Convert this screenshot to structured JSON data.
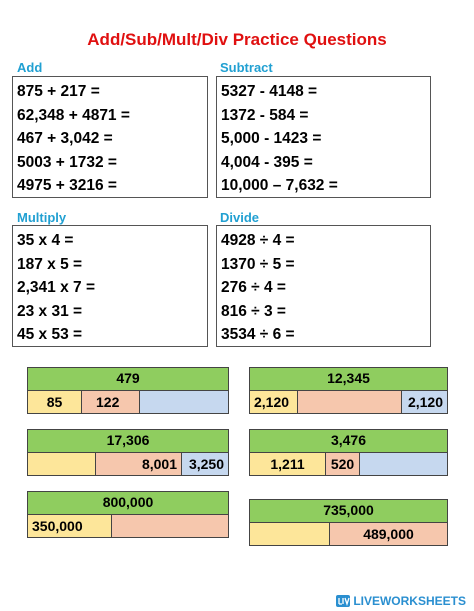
{
  "title": "Add/Sub/Mult/Div Practice Questions",
  "sections": {
    "add": {
      "label": "Add",
      "questions": [
        "875 + 217 =",
        "62,348 + 4871 =",
        "467 + 3,042 =",
        "5003 + 1732 =",
        "4975 + 3216 ="
      ]
    },
    "subtract": {
      "label": "Subtract",
      "questions": [
        "5327 - 4148 =",
        "1372 - 584 =",
        "5,000 - 1423 =",
        "4,004 - 395 =",
        "10,000 – 7,632 ="
      ]
    },
    "multiply": {
      "label": "Multiply",
      "questions": [
        "35 x 4 =",
        "187 x 5 =",
        "2,341 x 7 =",
        "23 x 31 =",
        "45 x 53 ="
      ]
    },
    "divide": {
      "label": "Divide",
      "questions": [
        "4928 ÷ 4 =",
        "1370 ÷ 5 =",
        "276 ÷ 4 =",
        "816 ÷ 3 =",
        "3534 ÷ 6 ="
      ]
    }
  },
  "bar_models": [
    {
      "total": "479",
      "parts": [
        "85",
        "122",
        ""
      ]
    },
    {
      "total": "12,345",
      "parts": [
        "2,120",
        "",
        "2,120"
      ]
    },
    {
      "total": "17,306",
      "parts": [
        "",
        "8,001",
        "3,250"
      ]
    },
    {
      "total": "3,476",
      "parts": [
        "1,211",
        "520",
        ""
      ]
    },
    {
      "total": "800,000",
      "parts": [
        "350,000",
        ""
      ]
    },
    {
      "total": "735,000",
      "parts": [
        "",
        "489,000"
      ]
    }
  ],
  "colors": {
    "title": "#e01010",
    "section_label": "#21a0d2",
    "bar_top": "#8fcd5f",
    "yellow": "#fde69a",
    "peach": "#f6c7ad",
    "blue": "#c6d8ef"
  },
  "footer": {
    "brand": "LIVEWORKSHEETS",
    "icon": "liveworksheets-logo-icon"
  }
}
